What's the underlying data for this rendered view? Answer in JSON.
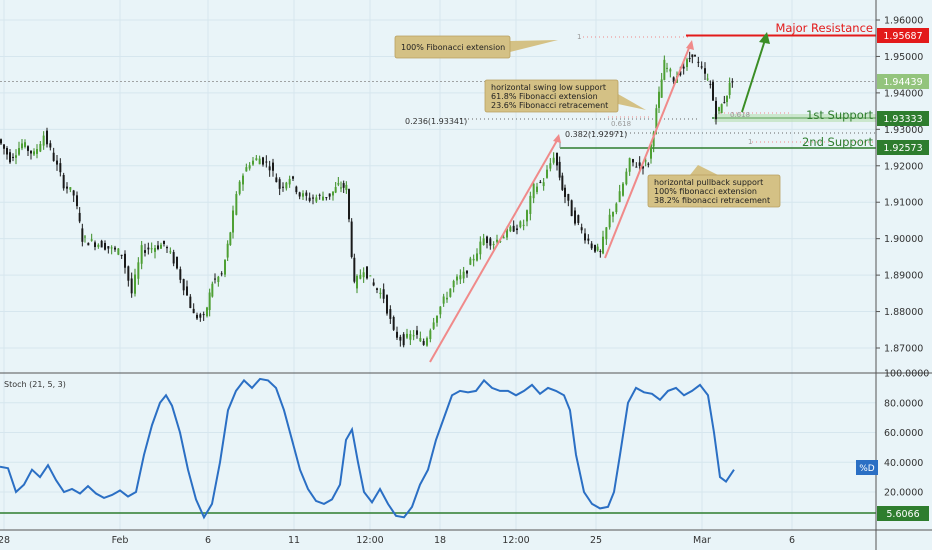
{
  "chart_data": [
    {
      "type": "candlestick",
      "title": "",
      "y_axis": {
        "ticks": [
          "1.96000",
          "1.95000",
          "1.94000",
          "1.93000",
          "1.92000",
          "1.91000",
          "1.90000",
          "1.89000",
          "1.88000",
          "1.87000"
        ],
        "ylim": [
          1.862,
          1.966
        ]
      },
      "x_axis": {
        "ticks": [
          "28",
          "Feb",
          "6",
          "11",
          "12:00",
          "18",
          "12:00",
          "25",
          "Mar",
          "6"
        ]
      },
      "price_labels": [
        {
          "name": "major-resistance",
          "value": "1.95687",
          "label": "Major Resistance",
          "color": "#e31a1a"
        },
        {
          "name": "current",
          "value": "1.94439",
          "label": "",
          "color": "#93c47d"
        },
        {
          "name": "first-support",
          "value": "1.93333",
          "label": "1st Support",
          "color": "#2e7d2e"
        },
        {
          "name": "second-support",
          "value": "1.92573",
          "label": "2nd Support",
          "color": "#2e7d2e"
        }
      ],
      "fib_labels": {
        "fib_236": "0.236(1.93341)",
        "fib_382": "0.382(1.92971)",
        "fib_1": "1",
        "fib_618": "0.618",
        "fib_618b": "0.618",
        "fib_1b": "1"
      },
      "annotations": [
        {
          "name": "annotation-fib-extension",
          "lines": [
            "100% Fibonacci extension"
          ]
        },
        {
          "name": "annotation-swing-low",
          "lines": [
            "horizontal swing low support",
            "61.8% Fibonacci extension",
            "23.6% Fibonacci retracement"
          ]
        },
        {
          "name": "annotation-pullback",
          "lines": [
            "horizontal pullback support",
            "100% fibonacci extension",
            "38.2% fibonacci retracement"
          ]
        }
      ],
      "series": [
        {
          "name": "",
          "points": [
            [
              0,
              1.9273
            ],
            [
              12,
              1.922
            ],
            [
              24,
              1.926
            ],
            [
              36,
              1.923
            ],
            [
              46,
              1.9285
            ],
            [
              56,
              1.922
            ],
            [
              66,
              1.915
            ],
            [
              76,
              1.912
            ],
            [
              84,
              1.9
            ],
            [
              94,
              1.899
            ],
            [
              104,
              1.8985
            ],
            [
              114,
              1.897
            ],
            [
              124,
              1.896
            ],
            [
              134,
              1.885
            ],
            [
              144,
              1.897
            ],
            [
              154,
              1.8975
            ],
            [
              166,
              1.8985
            ],
            [
              176,
              1.894
            ],
            [
              186,
              1.887
            ],
            [
              196,
              1.879
            ],
            [
              206,
              1.878
            ],
            [
              214,
              1.888
            ],
            [
              224,
              1.89
            ],
            [
              232,
              1.902
            ],
            [
              242,
              1.916
            ],
            [
              252,
              1.921
            ],
            [
              262,
              1.922
            ],
            [
              272,
              1.92
            ],
            [
              282,
              1.914
            ],
            [
              292,
              1.917
            ],
            [
              302,
              1.912
            ],
            [
              312,
              1.911
            ],
            [
              322,
              1.9115
            ],
            [
              332,
              1.912
            ],
            [
              340,
              1.9145
            ],
            [
              348,
              1.914
            ],
            [
              356,
              1.887
            ],
            [
              366,
              1.892
            ],
            [
              376,
              1.887
            ],
            [
              386,
              1.884
            ],
            [
              396,
              1.874
            ],
            [
              406,
              1.872
            ],
            [
              416,
              1.874
            ],
            [
              426,
              1.871
            ],
            [
              436,
              1.878
            ],
            [
              446,
              1.883
            ],
            [
              456,
              1.888
            ],
            [
              466,
              1.89
            ],
            [
              476,
              1.895
            ],
            [
              486,
              1.9
            ],
            [
              496,
              1.899
            ],
            [
              506,
              1.901
            ],
            [
              516,
              1.903
            ],
            [
              526,
              1.904
            ],
            [
              536,
              1.914
            ],
            [
              546,
              1.916
            ],
            [
              556,
              1.923
            ],
            [
              564,
              1.914
            ],
            [
              574,
              1.907
            ],
            [
              584,
              1.902
            ],
            [
              594,
              1.898
            ],
            [
              602,
              1.896
            ],
            [
              612,
              1.906
            ],
            [
              622,
              1.912
            ],
            [
              632,
              1.921
            ],
            [
              642,
              1.92
            ],
            [
              650,
              1.921
            ],
            [
              658,
              1.935
            ],
            [
              666,
              1.948
            ],
            [
              676,
              1.944
            ],
            [
              686,
              1.947
            ],
            [
              694,
              1.951
            ],
            [
              704,
              1.946
            ],
            [
              712,
              1.942
            ],
            [
              718,
              1.934
            ],
            [
              726,
              1.938
            ],
            [
              734,
              1.944
            ]
          ]
        }
      ]
    },
    {
      "type": "line",
      "title": "Stoch (21, 5, 3)",
      "y_axis": {
        "ticks": [
          "100.0000",
          "80.0000",
          "60.0000",
          "40.0000",
          "20.0000"
        ],
        "ylim": [
          0,
          100
        ]
      },
      "price_labels": [
        {
          "name": "stoch-k",
          "value": "%D",
          "label": "",
          "color": "#2b6fc4"
        },
        {
          "name": "stoch-low",
          "value": "5.6066",
          "label": "",
          "color": "#2e7d2e"
        }
      ],
      "series": [
        {
          "name": "",
          "points": [
            [
              0,
              37
            ],
            [
              8,
              36
            ],
            [
              16,
              20
            ],
            [
              24,
              25
            ],
            [
              32,
              35
            ],
            [
              40,
              30
            ],
            [
              48,
              38
            ],
            [
              56,
              28
            ],
            [
              64,
              20
            ],
            [
              72,
              22
            ],
            [
              80,
              19
            ],
            [
              88,
              24
            ],
            [
              96,
              19
            ],
            [
              104,
              16
            ],
            [
              112,
              18
            ],
            [
              120,
              21
            ],
            [
              128,
              17
            ],
            [
              136,
              20
            ],
            [
              144,
              45
            ],
            [
              152,
              65
            ],
            [
              160,
              80
            ],
            [
              166,
              85
            ],
            [
              172,
              78
            ],
            [
              180,
              60
            ],
            [
              188,
              35
            ],
            [
              196,
              15
            ],
            [
              204,
              3
            ],
            [
              212,
              12
            ],
            [
              220,
              40
            ],
            [
              228,
              75
            ],
            [
              236,
              88
            ],
            [
              244,
              95
            ],
            [
              252,
              90
            ],
            [
              260,
              96
            ],
            [
              268,
              95
            ],
            [
              276,
              90
            ],
            [
              284,
              75
            ],
            [
              292,
              55
            ],
            [
              300,
              35
            ],
            [
              308,
              22
            ],
            [
              316,
              14
            ],
            [
              324,
              12
            ],
            [
              332,
              15
            ],
            [
              340,
              25
            ],
            [
              346,
              55
            ],
            [
              352,
              62
            ],
            [
              358,
              40
            ],
            [
              364,
              20
            ],
            [
              372,
              13
            ],
            [
              380,
              22
            ],
            [
              388,
              12
            ],
            [
              396,
              4
            ],
            [
              404,
              3
            ],
            [
              412,
              10
            ],
            [
              420,
              25
            ],
            [
              428,
              35
            ],
            [
              436,
              55
            ],
            [
              444,
              70
            ],
            [
              452,
              85
            ],
            [
              460,
              88
            ],
            [
              468,
              87
            ],
            [
              476,
              88
            ],
            [
              484,
              95
            ],
            [
              492,
              90
            ],
            [
              500,
              88
            ],
            [
              508,
              88
            ],
            [
              516,
              85
            ],
            [
              524,
              88
            ],
            [
              532,
              92
            ],
            [
              540,
              86
            ],
            [
              548,
              90
            ],
            [
              556,
              88
            ],
            [
              564,
              85
            ],
            [
              570,
              75
            ],
            [
              576,
              45
            ],
            [
              584,
              20
            ],
            [
              592,
              12
            ],
            [
              600,
              9
            ],
            [
              608,
              10
            ],
            [
              614,
              20
            ],
            [
              620,
              45
            ],
            [
              628,
              80
            ],
            [
              636,
              90
            ],
            [
              644,
              87
            ],
            [
              652,
              86
            ],
            [
              660,
              82
            ],
            [
              668,
              88
            ],
            [
              676,
              90
            ],
            [
              684,
              85
            ],
            [
              692,
              88
            ],
            [
              700,
              92
            ],
            [
              708,
              85
            ],
            [
              714,
              60
            ],
            [
              720,
              30
            ],
            [
              726,
              27
            ],
            [
              734,
              35
            ]
          ]
        }
      ]
    }
  ]
}
